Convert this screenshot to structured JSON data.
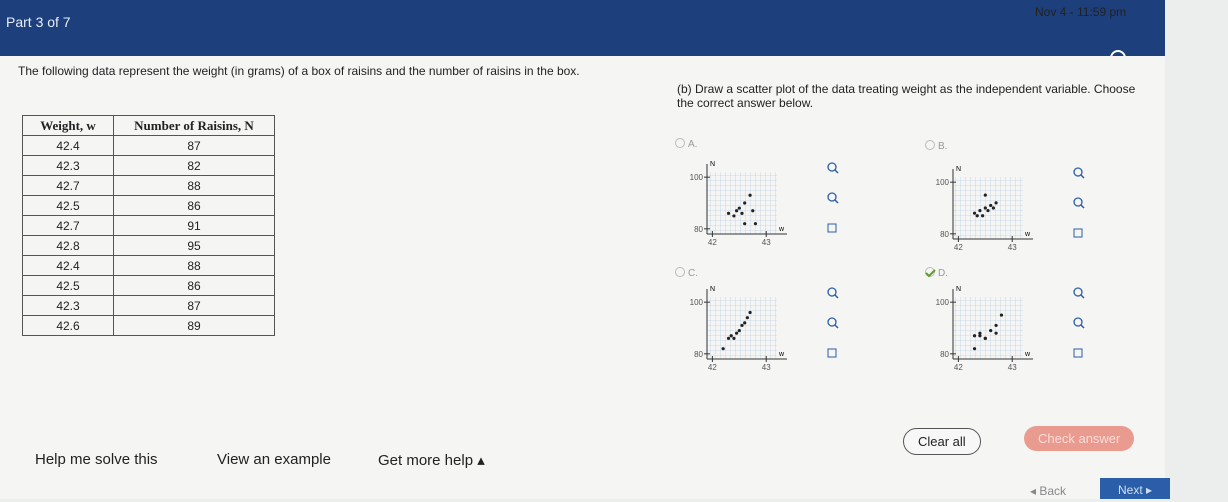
{
  "header": {
    "part": "Part 3 of 7",
    "timestamp": "Nov 4 - 11:59 pm"
  },
  "question": {
    "prompt": "The following data represent the weight (in grams) of a box of raisins and the number of raisins in the box.",
    "table": {
      "headers": [
        "Weight, w",
        "Number of Raisins, N"
      ],
      "rows": [
        [
          "42.4",
          "87"
        ],
        [
          "42.3",
          "82"
        ],
        [
          "42.7",
          "88"
        ],
        [
          "42.5",
          "86"
        ],
        [
          "42.7",
          "91"
        ],
        [
          "42.8",
          "95"
        ],
        [
          "42.4",
          "88"
        ],
        [
          "42.5",
          "86"
        ],
        [
          "42.3",
          "87"
        ],
        [
          "42.6",
          "89"
        ]
      ]
    }
  },
  "part_b": {
    "prompt": "(b) Draw a scatter plot of the data treating weight as the independent variable. Choose the correct answer below.",
    "options": [
      {
        "label": "A.",
        "chart": {
          "type": "scatter",
          "x_label": "w",
          "y_label": "N",
          "xlim": [
            41.9,
            43.2
          ],
          "ylim": [
            78,
            102
          ],
          "xticks": [
            42,
            43
          ],
          "yticks": [
            80,
            100
          ],
          "x": [
            42.3,
            42.4,
            42.45,
            42.5,
            42.55,
            42.6,
            42.7,
            42.75,
            42.8,
            42.6
          ],
          "y": [
            86,
            85,
            87,
            88,
            86,
            90,
            93,
            87,
            82,
            82
          ]
        }
      },
      {
        "label": "B.",
        "chart": {
          "type": "scatter",
          "x_label": "w",
          "y_label": "N",
          "xlim": [
            41.9,
            43.2
          ],
          "ylim": [
            78,
            102
          ],
          "xticks": [
            42,
            43
          ],
          "yticks": [
            80,
            100
          ],
          "x": [
            42.3,
            42.35,
            42.4,
            42.45,
            42.5,
            42.55,
            42.6,
            42.65,
            42.7,
            42.5
          ],
          "y": [
            88,
            87,
            89,
            87,
            90,
            89,
            91,
            90,
            92,
            95
          ]
        }
      },
      {
        "label": "C.",
        "chart": {
          "type": "scatter",
          "x_label": "w",
          "y_label": "N",
          "xlim": [
            41.9,
            43.2
          ],
          "ylim": [
            78,
            102
          ],
          "xticks": [
            42,
            43
          ],
          "yticks": [
            80,
            100
          ],
          "x": [
            42.2,
            42.3,
            42.35,
            42.4,
            42.45,
            42.5,
            42.55,
            42.6,
            42.65,
            42.7
          ],
          "y": [
            82,
            86,
            87,
            86,
            88,
            89,
            91,
            92,
            94,
            96
          ]
        }
      },
      {
        "label": "D.",
        "chart": {
          "type": "scatter",
          "x_label": "w",
          "y_label": "N",
          "xlim": [
            41.9,
            43.2
          ],
          "ylim": [
            78,
            102
          ],
          "xticks": [
            42,
            43
          ],
          "yticks": [
            80,
            100
          ],
          "x": [
            42.4,
            42.3,
            42.7,
            42.5,
            42.7,
            42.8,
            42.4,
            42.5,
            42.3,
            42.6
          ],
          "y": [
            87,
            82,
            88,
            86,
            91,
            95,
            88,
            86,
            87,
            89
          ]
        }
      }
    ]
  },
  "footer": {
    "help": "Help me solve this",
    "example": "View an example",
    "more_help": "Get more help ▴",
    "clear": "Clear all",
    "check": "Check answer",
    "back": "◂ Back",
    "next": "Next ▸"
  }
}
